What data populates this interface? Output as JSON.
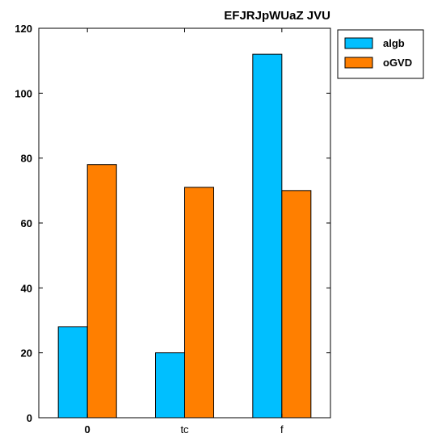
{
  "chart_data": {
    "type": "bar",
    "title": "EFJRJpWUaZ JVU",
    "xlabel": "",
    "ylabel": "",
    "categories": [
      "0",
      "tc",
      "f"
    ],
    "series": [
      {
        "name": "algb",
        "values": [
          28,
          20,
          112
        ],
        "color": "#00bfff"
      },
      {
        "name": "oGVD",
        "values": [
          78,
          71,
          70
        ],
        "color": "#ff7f00"
      }
    ],
    "ylim": [
      0,
      120
    ],
    "yticks": [
      0,
      20,
      40,
      60,
      80,
      100,
      120
    ],
    "grid": false,
    "legend_position": "top-right"
  }
}
